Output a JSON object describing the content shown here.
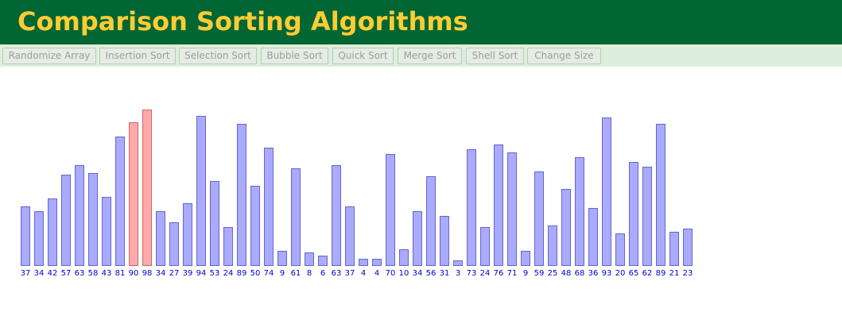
{
  "header": {
    "title": "Comparison Sorting Algorithms"
  },
  "toolbar": {
    "buttons": [
      {
        "name": "randomize-array-button",
        "label": "Randomize Array"
      },
      {
        "name": "insertion-sort-button",
        "label": "Insertion Sort"
      },
      {
        "name": "selection-sort-button",
        "label": "Selection Sort"
      },
      {
        "name": "bubble-sort-button",
        "label": "Bubble Sort"
      },
      {
        "name": "quick-sort-button",
        "label": "Quick Sort"
      },
      {
        "name": "merge-sort-button",
        "label": "Merge Sort"
      },
      {
        "name": "shell-sort-button",
        "label": "Shell Sort"
      },
      {
        "name": "change-size-button",
        "label": "Change Size"
      }
    ]
  },
  "colors": {
    "header_bg": "#006633",
    "title": "#ffcc33",
    "bar_fill": "#aaaaff",
    "bar_stroke": "#6666cc",
    "highlight_fill": "#ffaaaa",
    "highlight_stroke": "#cc6666",
    "label": "#0000cc"
  },
  "chart_data": {
    "type": "bar",
    "values": [
      37,
      34,
      42,
      57,
      63,
      58,
      43,
      81,
      90,
      98,
      34,
      27,
      39,
      94,
      53,
      24,
      89,
      50,
      74,
      9,
      61,
      8,
      6,
      63,
      37,
      4,
      4,
      70,
      10,
      34,
      56,
      31,
      3,
      73,
      24,
      76,
      71,
      9,
      59,
      25,
      48,
      68,
      36,
      93,
      20,
      65,
      62,
      89,
      21,
      23
    ],
    "highlighted_indices": [
      8,
      9
    ],
    "ylim": [
      0,
      100
    ]
  }
}
